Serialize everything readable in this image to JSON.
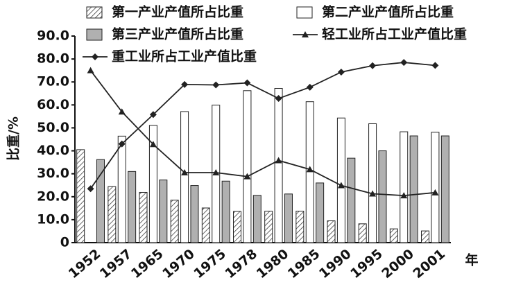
{
  "chart_data": {
    "type": "bar",
    "ylabel": "比重/%",
    "xlabel": "年",
    "categories": [
      "1952",
      "1957",
      "1965",
      "1970",
      "1975",
      "1978",
      "1980",
      "1985",
      "1990",
      "1995",
      "2000",
      "2001"
    ],
    "series": [
      {
        "name": "第一产业产值所占比重",
        "type": "bar",
        "hatch": true,
        "color": "#333333",
        "values": [
          40.5,
          24.4,
          21.9,
          18.5,
          15.1,
          13.6,
          13.7,
          13.7,
          9.5,
          8.2,
          6.0,
          5.1
        ]
      },
      {
        "name": "第二产业产值所占比重",
        "type": "bar",
        "color": "#ffffff",
        "values": [
          null,
          46.4,
          51.1,
          57.1,
          59.9,
          66.2,
          67.2,
          61.4,
          54.3,
          51.8,
          48.3,
          48.1
        ]
      },
      {
        "name": "第三产业产值所占比重",
        "type": "bar",
        "color": "#b0b0b0",
        "values": [
          36.2,
          31.0,
          27.3,
          24.9,
          26.8,
          20.6,
          21.2,
          26.0,
          36.8,
          40.0,
          46.5,
          46.5
        ]
      },
      {
        "name": "轻工业所占工业产值比重",
        "type": "line",
        "marker": "triangle",
        "color": "#222222",
        "values": [
          75.0,
          57.0,
          42.8,
          30.5,
          30.5,
          28.8,
          35.8,
          31.9,
          24.9,
          21.3,
          20.5,
          21.8
        ]
      },
      {
        "name": "重工业所占工业产值比重",
        "type": "line",
        "marker": "diamond",
        "color": "#222222",
        "values": [
          23.5,
          43.0,
          55.8,
          68.9,
          68.7,
          69.6,
          62.8,
          67.7,
          74.3,
          77.1,
          78.5,
          77.2
        ]
      }
    ],
    "ylim": [
      0,
      90
    ],
    "yticks": [
      0,
      {
        "value": 10,
        "label": "10.0"
      },
      {
        "value": 20,
        "label": "20.0"
      },
      {
        "value": 30,
        "label": "30.0"
      },
      {
        "value": 40,
        "label": "40.0"
      },
      {
        "value": 50,
        "label": "50.0"
      },
      {
        "value": 60,
        "label": "60.0"
      },
      {
        "value": 70,
        "label": "70.0"
      },
      {
        "value": 80,
        "label": "80.0"
      },
      {
        "value": 90,
        "label": "90.0"
      }
    ],
    "grid": false
  }
}
